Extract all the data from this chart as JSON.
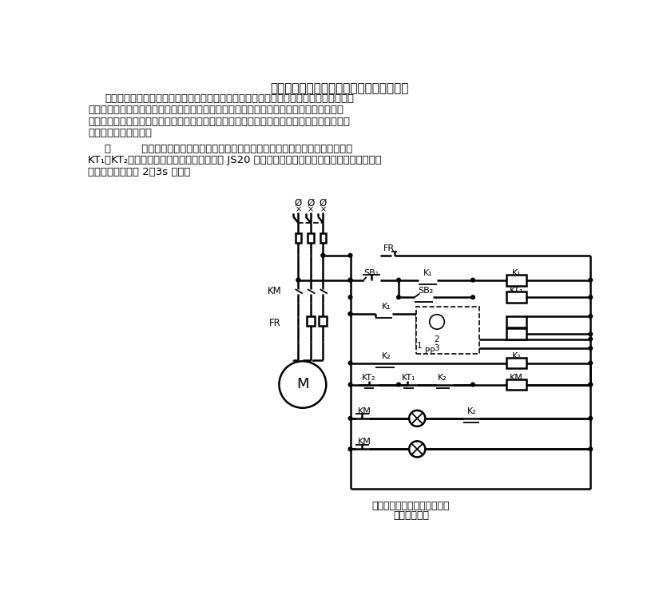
{
  "title": "用电接点压力表作液压、气压自动控制电路",
  "p1_lines": [
    "用电接点压力表实现液位控制，在自动启动或自动停机的临界时间里，由于压力尚未达到",
    "完全使压力表触点接触或未完全使压力表的触点分开时，中间继电器将会产生欲吸吸不住或",
    "欲分分不开的情况，压力表触点和中间继电器触点总会产生较大的火花或颤抖，会影响压力表",
    "和中间继电器的寿命。"
  ],
  "p2_lines": [
    "图         所示为利用电接点压力表的液压、气压自动控制电路，多用两只时间继电器",
    "KT₁、KT₂，工作可靠性高。时间继电器选用 JS20 型，按实际需要调整时间，用于水位或气压延",
    "时时，一般调整为 2～3s 即可。"
  ],
  "caption1": "用电接点压力表的液压、气压",
  "caption2": "自动控制电路",
  "bg_color": "#ffffff"
}
